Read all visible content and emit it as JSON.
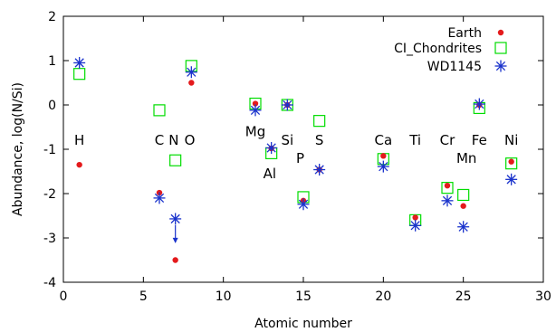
{
  "chart_data": {
    "type": "scatter",
    "xlabel": "Atomic number",
    "ylabel": "Abundance, log(N/Si)",
    "xlim": [
      0,
      30
    ],
    "ylim": [
      -4,
      2
    ],
    "xticks": [
      "0",
      "5",
      "10",
      "15",
      "20",
      "25",
      "30"
    ],
    "yticks": [
      "2",
      "1",
      "0",
      "-1",
      "-2",
      "-3",
      "-4"
    ],
    "grid": false,
    "legend_position": "top-right",
    "series": [
      {
        "name": "Earth",
        "marker": "dot",
        "color": "#e41a1c",
        "points": [
          [
            1,
            -1.35
          ],
          [
            6,
            -1.98
          ],
          [
            7,
            -3.5
          ],
          [
            8,
            0.5
          ],
          [
            12,
            0.03
          ],
          [
            13,
            -0.98
          ],
          [
            14,
            0
          ],
          [
            15,
            -2.16
          ],
          [
            16,
            -1.46
          ],
          [
            20,
            -1.15
          ],
          [
            22,
            -2.54
          ],
          [
            24,
            -1.82
          ],
          [
            25,
            -2.28
          ],
          [
            26,
            0
          ],
          [
            28,
            -1.28
          ]
        ]
      },
      {
        "name": "CI_Chondrites",
        "marker": "open-square",
        "color": "#00dd00",
        "points": [
          [
            1,
            0.7
          ],
          [
            6,
            -0.12
          ],
          [
            7,
            -1.25
          ],
          [
            8,
            0.88
          ],
          [
            12,
            0.03
          ],
          [
            13,
            -1.09
          ],
          [
            14,
            0
          ],
          [
            15,
            -2.08
          ],
          [
            16,
            -0.36
          ],
          [
            20,
            -1.22
          ],
          [
            22,
            -2.6
          ],
          [
            24,
            -1.87
          ],
          [
            25,
            -2.03
          ],
          [
            26,
            -0.07
          ],
          [
            28,
            -1.32
          ]
        ]
      },
      {
        "name": "WD1145",
        "marker": "star",
        "color": "#1a33cc",
        "points": [
          [
            1,
            0.95
          ],
          [
            6,
            -2.1
          ],
          [
            7,
            -2.57
          ],
          [
            8,
            0.74
          ],
          [
            12,
            -0.12
          ],
          [
            13,
            -0.97
          ],
          [
            14,
            0
          ],
          [
            15,
            -2.24
          ],
          [
            16,
            -1.46
          ],
          [
            20,
            -1.39
          ],
          [
            22,
            -2.72
          ],
          [
            24,
            -2.16
          ],
          [
            25,
            -2.75
          ],
          [
            26,
            0.02
          ],
          [
            28,
            -1.68
          ]
        ]
      }
    ],
    "upper_limits": [
      {
        "series": "WD1145",
        "x": 7,
        "y": -2.57
      }
    ],
    "annotations": [
      {
        "text": "H",
        "x": 1.0,
        "y": -0.8
      },
      {
        "text": "C",
        "x": 6.0,
        "y": -0.8
      },
      {
        "text": "N",
        "x": 6.9,
        "y": -0.8
      },
      {
        "text": "O",
        "x": 7.9,
        "y": -0.8
      },
      {
        "text": "Mg",
        "x": 12.0,
        "y": -0.6
      },
      {
        "text": "Al",
        "x": 12.9,
        "y": -1.55
      },
      {
        "text": "Si",
        "x": 14.0,
        "y": -0.8
      },
      {
        "text": "P",
        "x": 14.8,
        "y": -1.2
      },
      {
        "text": "S",
        "x": 16.0,
        "y": -0.8
      },
      {
        "text": "Ca",
        "x": 20.0,
        "y": -0.8
      },
      {
        "text": "Ti",
        "x": 22.0,
        "y": -0.8
      },
      {
        "text": "Cr",
        "x": 24.0,
        "y": -0.8
      },
      {
        "text": "Mn",
        "x": 25.2,
        "y": -1.2
      },
      {
        "text": "Fe",
        "x": 26.0,
        "y": -0.8
      },
      {
        "text": "Ni",
        "x": 28.0,
        "y": -0.8
      }
    ]
  }
}
